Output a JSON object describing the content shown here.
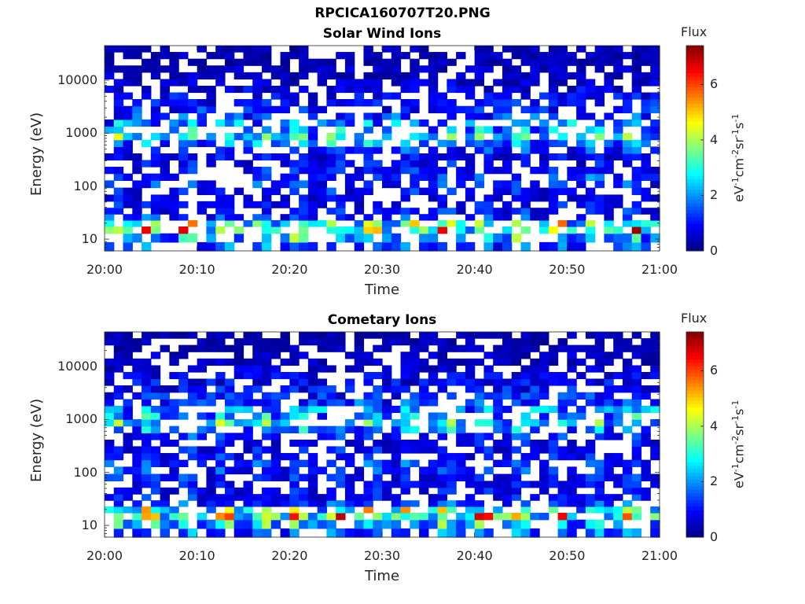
{
  "figure_title": "RPCICA160707T20.PNG",
  "colormap": "jet",
  "chart_data": [
    {
      "type": "heatmap",
      "title": "Solar Wind Ions",
      "xlabel": "Time",
      "ylabel": "Energy (eV)",
      "x_ticks": [
        "20:00",
        "20:10",
        "20:20",
        "20:30",
        "20:40",
        "20:50",
        "21:00"
      ],
      "xlim": [
        "20:00",
        "21:00"
      ],
      "y_scale": "log",
      "y_ticks": [
        "10",
        "100",
        "1000",
        "10000"
      ],
      "ylim": [
        6,
        45000
      ],
      "colorbar": {
        "title": "Flux",
        "label": "eV-1cm-2sr-1s-1",
        "ticks": [
          "0",
          "2",
          "4",
          "6"
        ],
        "range": [
          0,
          7.4
        ]
      },
      "time_bins_min": [
        0,
        1,
        2,
        3,
        4,
        5,
        6,
        7,
        8,
        9,
        10,
        11,
        12,
        13,
        14,
        15,
        16,
        17,
        18,
        19,
        20,
        21,
        22,
        23,
        24,
        25,
        26,
        27,
        28,
        29,
        30,
        31,
        32,
        33,
        34,
        35,
        36,
        37,
        38,
        39,
        40,
        41,
        42,
        43,
        44,
        45,
        46,
        47,
        48,
        49,
        50,
        51,
        52,
        53,
        54,
        55,
        56,
        57,
        58,
        59
      ],
      "energy_bins_eV": [
        7,
        11,
        15,
        20,
        26,
        34,
        45,
        60,
        80,
        110,
        150,
        200,
        270,
        360,
        480,
        650,
        870,
        1170,
        1570,
        2100,
        2800,
        3800,
        5100,
        6800,
        9100,
        12200,
        16400,
        22000,
        29500,
        39500
      ],
      "flux_profile_by_energy": [
        1.8,
        2.9,
        5.0,
        4.0,
        1.5,
        1.2,
        1.1,
        1.0,
        1.2,
        1.4,
        1.5,
        1.2,
        1.1,
        1.0,
        1.4,
        2.3,
        3.1,
        2.4,
        1.5,
        1.1,
        0.9,
        0.8,
        0.7,
        0.6,
        0.5,
        0.4,
        0.4,
        0.3,
        0.3,
        0.3
      ]
    },
    {
      "type": "heatmap",
      "title": "Cometary Ions",
      "xlabel": "Time",
      "ylabel": "Energy (eV)",
      "x_ticks": [
        "20:00",
        "20:10",
        "20:20",
        "20:30",
        "20:40",
        "20:50",
        "21:00"
      ],
      "xlim": [
        "20:00",
        "21:00"
      ],
      "y_scale": "log",
      "y_ticks": [
        "10",
        "100",
        "1000",
        "10000"
      ],
      "ylim": [
        6,
        45000
      ],
      "colorbar": {
        "title": "Flux",
        "label": "eV-1cm-2sr-1s-1",
        "ticks": [
          "0",
          "2",
          "4",
          "6"
        ],
        "range": [
          0,
          7.4
        ]
      },
      "time_bins_min": [
        0,
        1,
        2,
        3,
        4,
        5,
        6,
        7,
        8,
        9,
        10,
        11,
        12,
        13,
        14,
        15,
        16,
        17,
        18,
        19,
        20,
        21,
        22,
        23,
        24,
        25,
        26,
        27,
        28,
        29,
        30,
        31,
        32,
        33,
        34,
        35,
        36,
        37,
        38,
        39,
        40,
        41,
        42,
        43,
        44,
        45,
        46,
        47,
        48,
        49,
        50,
        51,
        52,
        53,
        54,
        55,
        56,
        57,
        58,
        59
      ],
      "energy_bins_eV": [
        7,
        11,
        15,
        20,
        26,
        34,
        45,
        60,
        80,
        110,
        150,
        200,
        270,
        360,
        480,
        650,
        870,
        1170,
        1570,
        2100,
        2800,
        3800,
        5100,
        6800,
        9100,
        12200,
        16400,
        22000,
        29500,
        39500
      ],
      "flux_profile_by_energy": [
        1.8,
        2.9,
        5.0,
        4.0,
        1.5,
        1.2,
        1.1,
        1.0,
        1.2,
        1.4,
        1.5,
        1.2,
        1.1,
        1.0,
        1.4,
        2.3,
        3.1,
        2.4,
        1.5,
        1.1,
        0.9,
        0.8,
        0.7,
        0.6,
        0.5,
        0.4,
        0.4,
        0.3,
        0.3,
        0.3
      ]
    }
  ]
}
